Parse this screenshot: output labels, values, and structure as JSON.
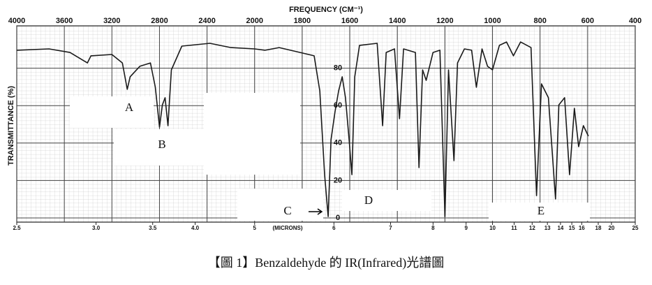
{
  "chart_data": {
    "type": "line",
    "title": "FREQUENCY (CM⁻¹)",
    "y_label": "TRANSMITTANCE (%)",
    "x2_label": "(MICRONS)",
    "caption": "【圖 1】Benzaldehyde 的 IR(Infrared)光譜圖",
    "x": [
      4000,
      3729,
      3553,
      3406,
      3376,
      3200,
      3112,
      3071,
      3047,
      2965,
      2876,
      2835,
      2800,
      2776,
      2753,
      2729,
      2700,
      2612,
      2376,
      2200,
      2000,
      1956,
      1897,
      1809,
      1750,
      1726,
      1706,
      1691,
      1679,
      1662,
      1647,
      1632,
      1618,
      1603,
      1591,
      1579,
      1559,
      1485,
      1462,
      1447,
      1412,
      1391,
      1374,
      1324,
      1309,
      1294,
      1279,
      1250,
      1221,
      1200,
      1185,
      1162,
      1147,
      1118,
      1088,
      1068,
      1044,
      1021,
      1000,
      971,
      941,
      912,
      882,
      838,
      815,
      794,
      765,
      735,
      721,
      697,
      676,
      656,
      638,
      618,
      597
    ],
    "values": [
      89.6,
      90.3,
      88.4,
      82.8,
      86.6,
      87.3,
      82.8,
      68.7,
      75.4,
      81,
      82.8,
      69.8,
      48.5,
      60.4,
      64.2,
      49.3,
      79.1,
      91.8,
      93.3,
      91,
      90.3,
      89.6,
      91,
      88.4,
      86.6,
      67.9,
      23.1,
      0.7,
      41.8,
      56.7,
      67.9,
      75.4,
      64.2,
      41.8,
      23.1,
      75.4,
      92.2,
      93.3,
      49.3,
      88.4,
      90.3,
      53,
      90.3,
      88.4,
      26.9,
      79.1,
      73.5,
      88.4,
      89.6,
      0.7,
      79.1,
      30.6,
      82.8,
      90.3,
      89.6,
      69.8,
      90.3,
      81,
      79.1,
      92.2,
      94,
      86.6,
      94,
      91,
      11.9,
      71.6,
      64.2,
      10.1,
      60.4,
      64.2,
      23.1,
      58.6,
      38.1,
      49.3,
      43.7
    ],
    "color": "#1a1a1a",
    "xlim": [
      4000,
      400
    ],
    "xticks": [
      4000,
      3600,
      3200,
      2800,
      2400,
      2000,
      1800,
      1600,
      1400,
      1200,
      1000,
      800,
      600,
      400
    ],
    "x2ticks": [
      2.5,
      {
        "value": 3,
        "label": "3.0"
      },
      3.5,
      {
        "value": 4,
        "label": "4.0"
      },
      5,
      6,
      7,
      8,
      9,
      10,
      11,
      12,
      13,
      14,
      15,
      16,
      18,
      20,
      25
    ],
    "ylim": [
      0,
      100
    ],
    "yticks": [
      0,
      20,
      40,
      60,
      80
    ],
    "grid": true,
    "annotations": [
      {
        "text": "A"
      },
      {
        "text": "B"
      },
      {
        "text": "C"
      },
      {
        "text": "D"
      },
      {
        "text": "E"
      }
    ]
  }
}
